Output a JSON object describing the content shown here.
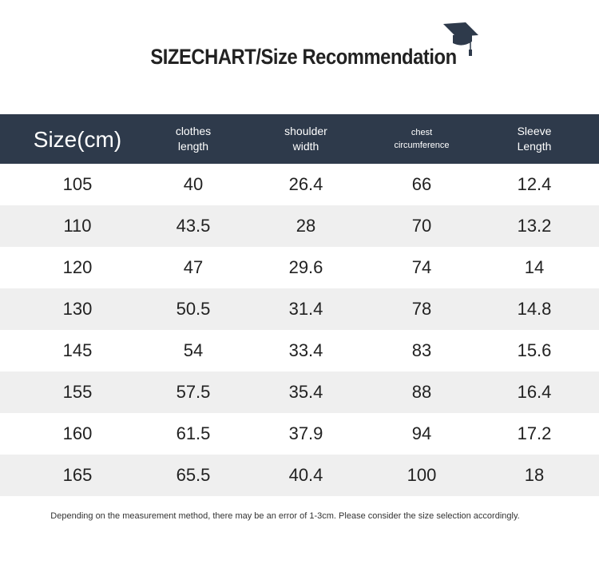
{
  "header": {
    "title": "SIZECHART/Size Recommendation"
  },
  "table": {
    "columns": [
      [
        "Size(cm)"
      ],
      [
        "clothes",
        "length"
      ],
      [
        "shoulder",
        "width"
      ],
      [
        "chest",
        "circumference"
      ],
      [
        "Sleeve",
        "Length"
      ]
    ],
    "rows": [
      [
        105,
        40,
        26.4,
        66,
        12.4
      ],
      [
        110,
        43.5,
        28,
        70,
        13.2
      ],
      [
        120,
        47,
        29.6,
        74,
        14
      ],
      [
        130,
        50.5,
        31.4,
        78,
        14.8
      ],
      [
        145,
        54,
        33.4,
        83,
        15.6
      ],
      [
        155,
        57.5,
        35.4,
        88,
        16.4
      ],
      [
        160,
        61.5,
        37.9,
        94,
        17.2
      ],
      [
        165,
        65.5,
        40.4,
        100,
        18
      ]
    ]
  },
  "note": "Depending on the measurement method, there may be an error of 1-3cm. Please consider the size selection accordingly."
}
